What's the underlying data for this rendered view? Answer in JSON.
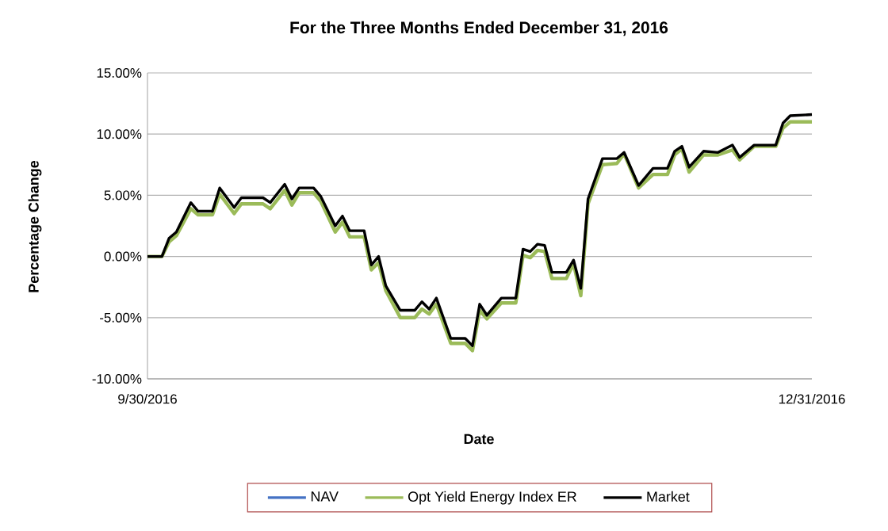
{
  "chart_data": {
    "type": "line",
    "title": "For the Three Months Ended December 31, 2016",
    "xlabel": "Date",
    "ylabel": "Percentage Change",
    "x": [
      "2016-09-30",
      "2016-10-02",
      "2016-10-03",
      "2016-10-04",
      "2016-10-05",
      "2016-10-06",
      "2016-10-07",
      "2016-10-09",
      "2016-10-10",
      "2016-10-11",
      "2016-10-12",
      "2016-10-13",
      "2016-10-16",
      "2016-10-17",
      "2016-10-19",
      "2016-10-20",
      "2016-10-21",
      "2016-10-23",
      "2016-10-24",
      "2016-10-26",
      "2016-10-27",
      "2016-10-28",
      "2016-10-30",
      "2016-10-31",
      "2016-11-01",
      "2016-11-02",
      "2016-11-04",
      "2016-11-06",
      "2016-11-07",
      "2016-11-08",
      "2016-11-09",
      "2016-11-11",
      "2016-11-13",
      "2016-11-14",
      "2016-11-15",
      "2016-11-16",
      "2016-11-18",
      "2016-11-20",
      "2016-11-21",
      "2016-11-22",
      "2016-11-23",
      "2016-11-24",
      "2016-11-25",
      "2016-11-27",
      "2016-11-28",
      "2016-11-29",
      "2016-11-30",
      "2016-12-02",
      "2016-12-04",
      "2016-12-05",
      "2016-12-07",
      "2016-12-09",
      "2016-12-11",
      "2016-12-12",
      "2016-12-13",
      "2016-12-14",
      "2016-12-16",
      "2016-12-18",
      "2016-12-20",
      "2016-12-21",
      "2016-12-23",
      "2016-12-26",
      "2016-12-27",
      "2016-12-28",
      "2016-12-31"
    ],
    "series": [
      {
        "name": "NAV",
        "color": "#4472c4",
        "values": [
          null,
          null,
          null,
          null,
          null,
          null,
          null,
          null,
          null,
          null,
          null,
          null,
          null,
          null,
          null,
          null,
          null,
          null,
          null,
          null,
          null,
          null,
          null,
          null,
          null,
          null,
          null,
          null,
          null,
          null,
          null,
          null,
          null,
          null,
          null,
          null,
          null,
          null,
          null,
          null,
          null,
          null,
          null,
          null,
          null,
          null,
          null,
          null,
          null,
          null,
          null,
          null,
          null,
          null,
          null,
          null,
          null,
          null,
          null,
          null,
          null,
          null,
          null,
          null,
          null
        ]
      },
      {
        "name": "Opt Yield Energy Index ER",
        "color": "#9bbb59",
        "values": [
          0,
          0,
          1.2,
          1.7,
          2.8,
          3.9,
          3.4,
          3.4,
          5.1,
          4.3,
          3.5,
          4.3,
          4.3,
          3.9,
          5.4,
          4.2,
          5.2,
          5.2,
          4.5,
          2.0,
          2.8,
          1.6,
          1.6,
          -1.1,
          -0.5,
          -2.8,
          -5.0,
          -5.0,
          -4.3,
          -4.7,
          -3.9,
          -7.1,
          -7.1,
          -7.7,
          -4.4,
          -5.1,
          -3.8,
          -3.8,
          0.1,
          -0.1,
          0.5,
          0.4,
          -1.8,
          -1.8,
          -0.6,
          -3.2,
          4.3,
          7.5,
          7.6,
          8.4,
          5.6,
          6.7,
          6.7,
          8.3,
          8.8,
          6.9,
          8.3,
          8.3,
          8.7,
          7.9,
          9.0,
          9.0,
          10.5,
          11.0,
          11.0
        ]
      },
      {
        "name": "Market",
        "color": "#000000",
        "values": [
          0,
          0,
          1.5,
          2.0,
          3.2,
          4.4,
          3.7,
          3.7,
          5.6,
          4.8,
          4.0,
          4.8,
          4.8,
          4.4,
          5.9,
          4.7,
          5.6,
          5.6,
          4.9,
          2.5,
          3.3,
          2.1,
          2.1,
          -0.7,
          0.0,
          -2.4,
          -4.4,
          -4.4,
          -3.7,
          -4.3,
          -3.4,
          -6.7,
          -6.7,
          -7.3,
          -3.9,
          -4.8,
          -3.4,
          -3.4,
          0.6,
          0.4,
          1.0,
          0.9,
          -1.3,
          -1.3,
          -0.3,
          -2.6,
          4.7,
          8.0,
          8.0,
          8.5,
          5.8,
          7.2,
          7.2,
          8.6,
          9.0,
          7.3,
          8.6,
          8.5,
          9.1,
          8.1,
          9.1,
          9.1,
          10.9,
          11.5,
          11.6
        ]
      }
    ],
    "xlim": [
      "2016-09-30",
      "2016-12-31"
    ],
    "xticks": [
      {
        "value": "2016-09-30",
        "label": "9/30/2016"
      },
      {
        "value": "2016-12-31",
        "label": "12/31/2016"
      }
    ],
    "ylim": [
      -10,
      15
    ],
    "yticks": [
      {
        "value": -10,
        "label": "-10.00%"
      },
      {
        "value": -5,
        "label": "-5.00%"
      },
      {
        "value": 0,
        "label": "0.00%"
      },
      {
        "value": 5,
        "label": "5.00%"
      },
      {
        "value": 10,
        "label": "10.00%"
      },
      {
        "value": 15,
        "label": "15.00%"
      }
    ],
    "grid": "y",
    "legend": "bottom",
    "marker": "none",
    "line_style": "solid"
  }
}
